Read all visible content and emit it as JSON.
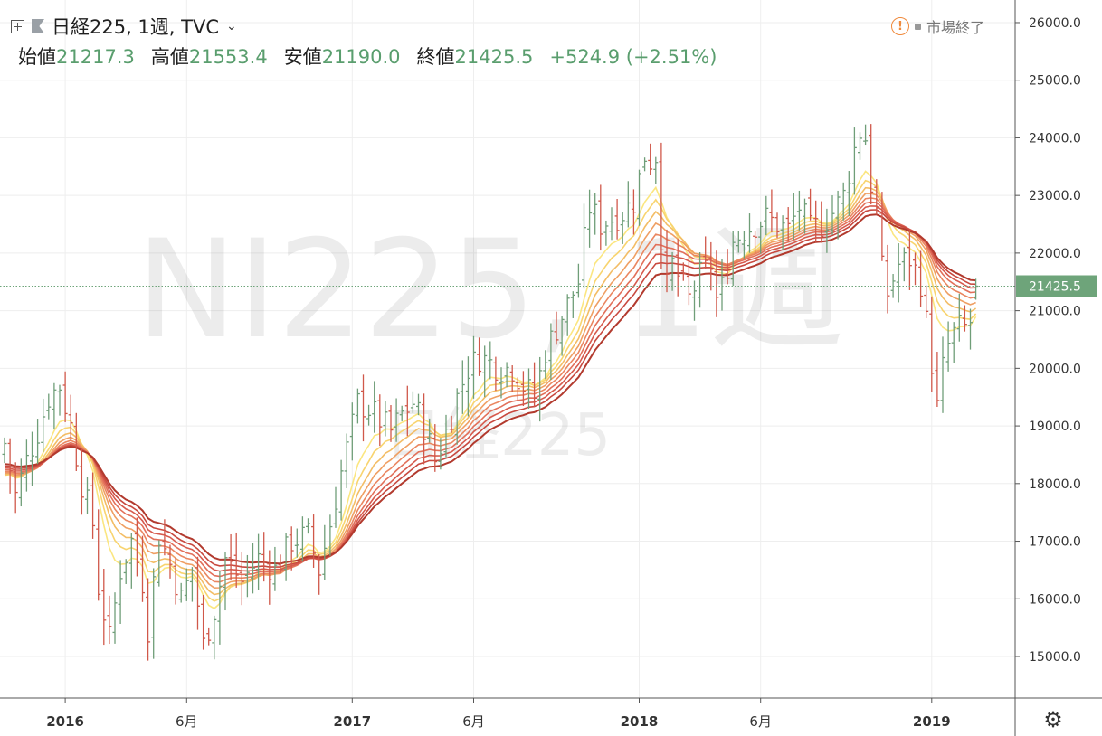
{
  "header": {
    "symbol_title": "日経225, 1週, TVC",
    "ohlc": {
      "open_label": "始値",
      "open": "21217.3",
      "high_label": "高値",
      "high": "21553.4",
      "low_label": "安値",
      "low": "21190.0",
      "close_label": "終値",
      "close": "21425.5",
      "change": "+524.9 (+2.51%)"
    },
    "market_status": "市場終了"
  },
  "watermark": {
    "main": "NI225, 1週",
    "sub": "日経225"
  },
  "colors": {
    "up": "#6f9e78",
    "down": "#d0584a",
    "grid": "#eeeeee",
    "price_tag": "#6ea47a",
    "ribbon": [
      "#fbe680",
      "#f8d46f",
      "#f3bd66",
      "#ef9f63",
      "#ea8660",
      "#e2705a",
      "#d65a4d",
      "#c8493f",
      "#b23a2e"
    ]
  },
  "chart_data": {
    "type": "ohlc",
    "ylim": [
      14300,
      26300
    ],
    "yticks": [
      "15000.0",
      "16000.0",
      "17000.0",
      "18000.0",
      "19000.0",
      "20000.0",
      "21000.0",
      "22000.0",
      "23000.0",
      "24000.0",
      "25000.0",
      "26000.0"
    ],
    "xticks": [
      {
        "label": "2016",
        "bold": true,
        "week": 11
      },
      {
        "label": "6月",
        "bold": false,
        "week": 33
      },
      {
        "label": "2017",
        "bold": true,
        "week": 63
      },
      {
        "label": "6月",
        "bold": false,
        "week": 85
      },
      {
        "label": "2018",
        "bold": true,
        "week": 115
      },
      {
        "label": "6月",
        "bold": false,
        "week": 137
      },
      {
        "label": "2019",
        "bold": true,
        "week": 168
      }
    ],
    "last_price": 21425.5,
    "last_price_label": "21425.5",
    "anchors": [
      [
        0,
        18700
      ],
      [
        2,
        17800
      ],
      [
        4,
        18400
      ],
      [
        6,
        18900
      ],
      [
        8,
        19500
      ],
      [
        10,
        19700
      ],
      [
        12,
        19000
      ],
      [
        14,
        18000
      ],
      [
        16,
        17300
      ],
      [
        17,
        16200
      ],
      [
        19,
        15300
      ],
      [
        21,
        16500
      ],
      [
        23,
        17000
      ],
      [
        25,
        16300
      ],
      [
        26,
        15500
      ],
      [
        28,
        17100
      ],
      [
        30,
        16600
      ],
      [
        32,
        16000
      ],
      [
        34,
        16500
      ],
      [
        35,
        15900
      ],
      [
        36,
        15200
      ],
      [
        38,
        15800
      ],
      [
        40,
        16700
      ],
      [
        43,
        16300
      ],
      [
        46,
        16700
      ],
      [
        49,
        16500
      ],
      [
        52,
        17000
      ],
      [
        55,
        17100
      ],
      [
        57,
        16500
      ],
      [
        59,
        17300
      ],
      [
        61,
        18200
      ],
      [
        63,
        19000
      ],
      [
        64,
        19400
      ],
      [
        66,
        19300
      ],
      [
        68,
        19100
      ],
      [
        70,
        18900
      ],
      [
        72,
        19200
      ],
      [
        74,
        19400
      ],
      [
        76,
        19000
      ],
      [
        78,
        18400
      ],
      [
        80,
        18900
      ],
      [
        82,
        19500
      ],
      [
        84,
        20000
      ],
      [
        86,
        20200
      ],
      [
        88,
        20100
      ],
      [
        90,
        20000
      ],
      [
        92,
        20000
      ],
      [
        94,
        19700
      ],
      [
        96,
        19500
      ],
      [
        98,
        20300
      ],
      [
        100,
        20700
      ],
      [
        102,
        21100
      ],
      [
        104,
        21500
      ],
      [
        105,
        22200
      ],
      [
        106,
        22800
      ],
      [
        108,
        22500
      ],
      [
        110,
        22600
      ],
      [
        112,
        22700
      ],
      [
        114,
        22900
      ],
      [
        116,
        23700
      ],
      [
        117,
        23600
      ],
      [
        118,
        23700
      ],
      [
        119,
        22300
      ],
      [
        120,
        21400
      ],
      [
        121,
        21800
      ],
      [
        122,
        21600
      ],
      [
        124,
        21200
      ],
      [
        126,
        21600
      ],
      [
        128,
        21800
      ],
      [
        129,
        21200
      ],
      [
        130,
        21400
      ],
      [
        132,
        22200
      ],
      [
        134,
        22400
      ],
      [
        136,
        22500
      ],
      [
        138,
        22600
      ],
      [
        140,
        22500
      ],
      [
        142,
        22400
      ],
      [
        144,
        22800
      ],
      [
        146,
        22400
      ],
      [
        148,
        22500
      ],
      [
        150,
        22700
      ],
      [
        152,
        23000
      ],
      [
        154,
        23800
      ],
      [
        155,
        24100
      ],
      [
        156,
        24000
      ],
      [
        157,
        23200
      ],
      [
        158,
        22700
      ],
      [
        159,
        21700
      ],
      [
        160,
        21300
      ],
      [
        162,
        21800
      ],
      [
        164,
        21900
      ],
      [
        166,
        21500
      ],
      [
        167,
        20800
      ],
      [
        168,
        20100
      ],
      [
        169,
        19300
      ],
      [
        170,
        20000
      ],
      [
        171,
        20400
      ],
      [
        172,
        20600
      ],
      [
        173,
        20700
      ],
      [
        174,
        20700
      ],
      [
        175,
        20800
      ],
      [
        176,
        21425
      ]
    ]
  }
}
